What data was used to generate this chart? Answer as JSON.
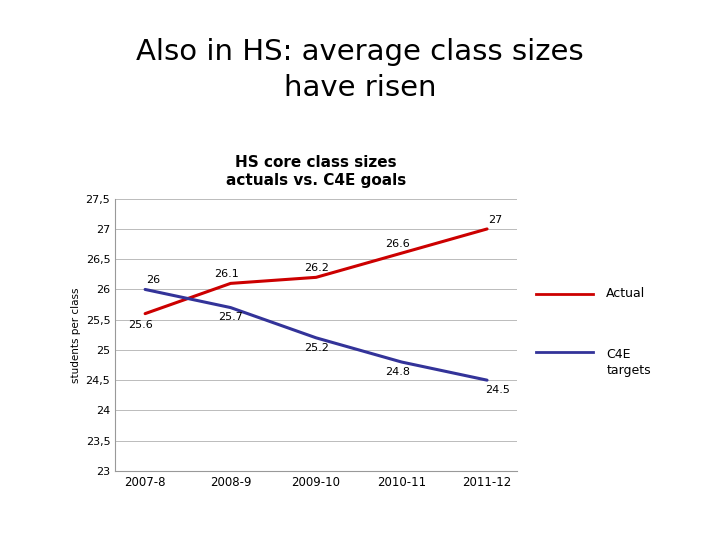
{
  "title_main": "Also in HS: average class sizes\nhave risen",
  "title_main_bg": "#add8e6",
  "chart_title": "HS core class sizes\nactuals vs. C4E goals",
  "ylabel": "students per class",
  "years": [
    "2007-8",
    "2008-9",
    "2009-10",
    "2010-11",
    "2011-12"
  ],
  "actual_values": [
    25.6,
    26.1,
    26.2,
    26.6,
    27.0
  ],
  "c4e_values": [
    26.0,
    25.7,
    25.2,
    24.8,
    24.5
  ],
  "actual_labels": [
    "25.6",
    "26.1",
    "26.2",
    "26.6",
    "27"
  ],
  "c4e_labels": [
    "26",
    "25.7",
    "25.2",
    "24.8",
    "24.5"
  ],
  "actual_color": "#cc0000",
  "c4e_color": "#333399",
  "ylim_min": 23,
  "ylim_max": 27.5,
  "ytick_vals": [
    23,
    23.5,
    24,
    24.5,
    25,
    25.5,
    26,
    26.5,
    27,
    27.5
  ],
  "ytick_labels": [
    "23",
    "23,5",
    "24",
    "24,5",
    "25",
    "25,5",
    "26",
    "26,5",
    "27",
    "27,5"
  ],
  "legend_actual": "Actual",
  "legend_c4e": "C4E\ntargets",
  "chart_border_color": "#aaaaaa",
  "outer_bg": "#ffffff",
  "chart_bg": "#ffffff"
}
